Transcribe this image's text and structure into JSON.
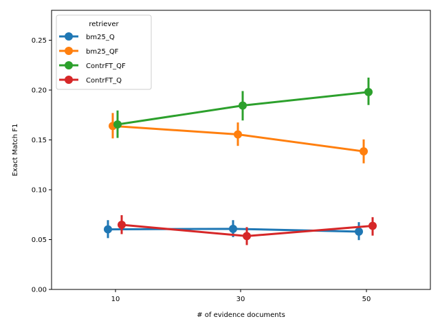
{
  "chart_data": {
    "type": "line",
    "xlabel": "# of evidence documents",
    "ylabel": "Exact Match F1",
    "categories": [
      "10",
      "30",
      "50"
    ],
    "ylim": [
      0.0,
      0.28
    ],
    "yticks": [
      "0.00",
      "0.05",
      "0.10",
      "0.15",
      "0.20",
      "0.25"
    ],
    "grid": false,
    "legend": {
      "title": "retriever",
      "placement": "top-left"
    },
    "series": [
      {
        "name": "bm25_Q",
        "color": "#1f77b4",
        "values": [
          0.0603,
          0.0608,
          0.058
        ],
        "ci_low": [
          0.0515,
          0.0525,
          0.0495
        ],
        "ci_high": [
          0.0695,
          0.0695,
          0.0675
        ]
      },
      {
        "name": "bm25_QF",
        "color": "#ff7f0e",
        "values": [
          0.164,
          0.1555,
          0.1385
        ],
        "ci_low": [
          0.1515,
          0.144,
          0.1265
        ],
        "ci_high": [
          0.177,
          0.1675,
          0.1505
        ]
      },
      {
        "name": "ContrFT_QF",
        "color": "#2ca02c",
        "values": [
          0.1655,
          0.1845,
          0.198
        ],
        "ci_low": [
          0.152,
          0.1695,
          0.185
        ],
        "ci_high": [
          0.1795,
          0.199,
          0.2125
        ]
      },
      {
        "name": "ContrFT_Q",
        "color": "#d62728",
        "values": [
          0.0648,
          0.0535,
          0.0638
        ],
        "ci_low": [
          0.0555,
          0.0445,
          0.054
        ],
        "ci_high": [
          0.0745,
          0.0625,
          0.0725
        ]
      }
    ]
  }
}
